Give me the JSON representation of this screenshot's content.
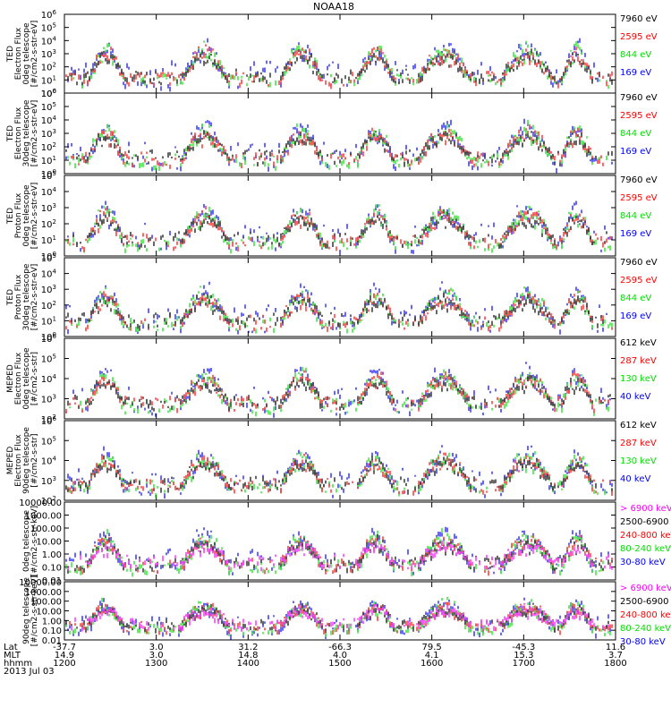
{
  "title": "NOAA18",
  "colors": {
    "black": "#000000",
    "red": "#ff0000",
    "green": "#00e000",
    "blue": "#0000ff",
    "magenta": "#ff00ff"
  },
  "chart_data": [
    {
      "type": "scatter",
      "instrument": "TED",
      "ylabel_lines": [
        "TED",
        "Electron Flux",
        "0deg telescope",
        "[#/cm2-s-str-eV]"
      ],
      "ylim": [
        1,
        1000000
      ],
      "yscale": "log",
      "ytick_labels": [
        "10^0",
        "10^1",
        "10^2",
        "10^3",
        "10^4",
        "10^5",
        "10^6"
      ],
      "legend": [
        {
          "label": "7960 eV",
          "color": "black"
        },
        {
          "label": "2595 eV",
          "color": "red"
        },
        {
          "label": "844 eV",
          "color": "green"
        },
        {
          "label": "169 eV",
          "color": "blue"
        }
      ]
    },
    {
      "type": "scatter",
      "instrument": "TED",
      "ylabel_lines": [
        "TED",
        "Electron Flux",
        "30deg telescope",
        "[#/cm2-s-str-eV]"
      ],
      "ylim": [
        1,
        1000000
      ],
      "yscale": "log",
      "ytick_labels": [
        "10^0",
        "10^1",
        "10^2",
        "10^3",
        "10^4",
        "10^5",
        "10^6"
      ],
      "legend": [
        {
          "label": "7960 eV",
          "color": "black"
        },
        {
          "label": "2595 eV",
          "color": "red"
        },
        {
          "label": "844 eV",
          "color": "green"
        },
        {
          "label": "169 eV",
          "color": "blue"
        }
      ]
    },
    {
      "type": "scatter",
      "instrument": "TED",
      "ylabel_lines": [
        "TED",
        "Proton Flux",
        "0deg telescope",
        "[#/cm2-s-str-eV]"
      ],
      "ylim": [
        1,
        100000
      ],
      "yscale": "log",
      "ytick_labels": [
        "10^0",
        "10^1",
        "10^2",
        "10^3",
        "10^4",
        "10^5"
      ],
      "legend": [
        {
          "label": "7960 eV",
          "color": "black"
        },
        {
          "label": "2595 eV",
          "color": "red"
        },
        {
          "label": "844 eV",
          "color": "green"
        },
        {
          "label": "169 eV",
          "color": "blue"
        }
      ]
    },
    {
      "type": "scatter",
      "instrument": "TED",
      "ylabel_lines": [
        "TED",
        "Proton Flux",
        "30deg telescope",
        "[#/cm2-s-str-eV]"
      ],
      "ylim": [
        1,
        100000
      ],
      "yscale": "log",
      "ytick_labels": [
        "10^0",
        "10^1",
        "10^2",
        "10^3",
        "10^4",
        "10^5"
      ],
      "legend": [
        {
          "label": "7960 eV",
          "color": "black"
        },
        {
          "label": "2595 eV",
          "color": "red"
        },
        {
          "label": "844 eV",
          "color": "green"
        },
        {
          "label": "169 eV",
          "color": "blue"
        }
      ]
    },
    {
      "type": "scatter",
      "instrument": "MEPED",
      "ylabel_lines": [
        "MEPED",
        "Electron Flux",
        "0deg telescope",
        "[#/cm2-s-str]"
      ],
      "ylim": [
        100,
        1000000
      ],
      "yscale": "log",
      "ytick_labels": [
        "10^2",
        "10^3",
        "10^4",
        "10^5",
        "10^6"
      ],
      "legend": [
        {
          "label": "612 keV",
          "color": "black"
        },
        {
          "label": "287 keV",
          "color": "red"
        },
        {
          "label": "130 keV",
          "color": "green"
        },
        {
          "label": "40 keV",
          "color": "blue"
        }
      ]
    },
    {
      "type": "scatter",
      "instrument": "MEPED",
      "ylabel_lines": [
        "MEPED",
        "Electron Flux",
        "90deg telescope",
        "[#/cm2-s-str]"
      ],
      "ylim": [
        100,
        1000000
      ],
      "yscale": "log",
      "ytick_labels": [
        "10^2",
        "10^3",
        "10^4",
        "10^5",
        "10^6"
      ],
      "legend": [
        {
          "label": "612 keV",
          "color": "black"
        },
        {
          "label": "287 keV",
          "color": "red"
        },
        {
          "label": "130 keV",
          "color": "green"
        },
        {
          "label": "40 keV",
          "color": "blue"
        }
      ]
    },
    {
      "type": "scatter",
      "instrument": "MEPED",
      "ylabel_lines": [
        "0deg telescope",
        "[#/cm2-s-str-keV]"
      ],
      "ylim": [
        0.01,
        10000
      ],
      "yscale": "log",
      "ytick_labels": [
        "0.01",
        "0.10",
        "1.00",
        "10.00",
        "100.00",
        "1000.00",
        "10000.00"
      ],
      "legend": [
        {
          "label": "> 6900 keV",
          "color": "magenta"
        },
        {
          "label": "2500-6900",
          "color": "black"
        },
        {
          "label": "240-800 keV",
          "color": "red"
        },
        {
          "label": "80-240 keV",
          "color": "green"
        },
        {
          "label": "30-80 keV",
          "color": "blue"
        }
      ]
    },
    {
      "type": "scatter",
      "instrument": "MEPED",
      "ylabel_lines": [
        "90deg telescope",
        "[#/cm2-s-str-keV]"
      ],
      "ylim": [
        0.01,
        10000
      ],
      "yscale": "log",
      "ytick_labels": [
        "0.01",
        "0.10",
        "1.00",
        "10.00",
        "100.00",
        "1000.00",
        "10000.00"
      ],
      "legend": [
        {
          "label": "> 6900 keV",
          "color": "magenta"
        },
        {
          "label": "2500-6900",
          "color": "black"
        },
        {
          "label": "240-800 keV",
          "color": "red"
        },
        {
          "label": "80-240 keV",
          "color": "green"
        },
        {
          "label": "30-80 keV",
          "color": "blue"
        }
      ]
    }
  ],
  "xaxis": {
    "row_labels": [
      "Lat",
      "MLT",
      "hhmm"
    ],
    "date": "2013 Jul 03",
    "ticks": [
      {
        "lat": "-37.7",
        "mlt": "14.9",
        "hhmm": "1200"
      },
      {
        "lat": "3.0",
        "mlt": "3.0",
        "hhmm": "1300"
      },
      {
        "lat": "31.2",
        "mlt": "14.8",
        "hhmm": "1400"
      },
      {
        "lat": "-66.3",
        "mlt": "4.0",
        "hhmm": "1500"
      },
      {
        "lat": "79.5",
        "mlt": "4.1",
        "hhmm": "1600"
      },
      {
        "lat": "-45.3",
        "mlt": "15.3",
        "hhmm": "1700"
      },
      {
        "lat": "11.6",
        "mlt": "3.7",
        "hhmm": "1800"
      }
    ]
  }
}
